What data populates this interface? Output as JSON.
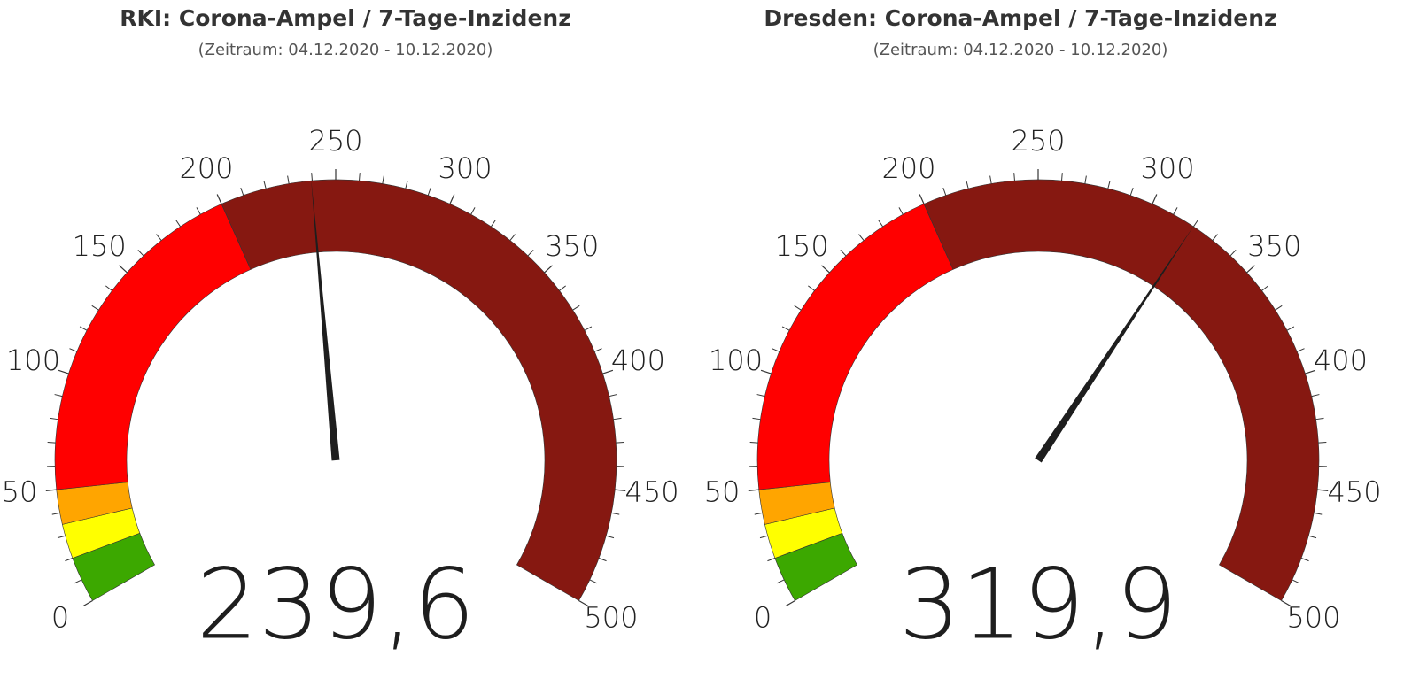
{
  "chart_data": [
    {
      "type": "gauge",
      "title": "RKI: Corona-Ampel / 7-Tage-Inzidenz",
      "subtitle": "(Zeitraum: 04.12.2020 - 10.12.2020)",
      "values": [
        239.6
      ],
      "value_labels": [
        "239,6"
      ],
      "ylim": [
        0,
        500
      ],
      "yticks": [
        0,
        50,
        100,
        150,
        200,
        250,
        300,
        350,
        400,
        450,
        500
      ],
      "minor_ticks": [
        10,
        20,
        30,
        40,
        60,
        70,
        80,
        90,
        110,
        120,
        130,
        140,
        160,
        170,
        180,
        190,
        210,
        220,
        230,
        240,
        260,
        270,
        280,
        290,
        310,
        320,
        330,
        340,
        360,
        370,
        380,
        390,
        410,
        420,
        430,
        440,
        460,
        470,
        480,
        490
      ],
      "bands": [
        {
          "from": 0,
          "to": 20,
          "color": "#3ca800"
        },
        {
          "from": 20,
          "to": 35,
          "color": "#ffff00"
        },
        {
          "from": 35,
          "to": 50,
          "color": "#ffa500"
        },
        {
          "from": 50,
          "to": 200,
          "color": "#ff0000"
        },
        {
          "from": 200,
          "to": 500,
          "color": "#861811"
        }
      ],
      "needle_color": "#1e1e1e"
    },
    {
      "type": "gauge",
      "title": "Dresden: Corona-Ampel / 7-Tage-Inzidenz",
      "subtitle": "(Zeitraum: 04.12.2020 - 10.12.2020)",
      "values": [
        319.9
      ],
      "value_labels": [
        "319,9"
      ],
      "ylim": [
        0,
        500
      ],
      "yticks": [
        0,
        50,
        100,
        150,
        200,
        250,
        300,
        350,
        400,
        450,
        500
      ],
      "minor_ticks": [
        10,
        20,
        30,
        40,
        60,
        70,
        80,
        90,
        110,
        120,
        130,
        140,
        160,
        170,
        180,
        190,
        210,
        220,
        230,
        240,
        260,
        270,
        280,
        290,
        310,
        320,
        330,
        340,
        360,
        370,
        380,
        390,
        410,
        420,
        430,
        440,
        460,
        470,
        480,
        490
      ],
      "bands": [
        {
          "from": 0,
          "to": 20,
          "color": "#3ca800"
        },
        {
          "from": 20,
          "to": 35,
          "color": "#ffff00"
        },
        {
          "from": 35,
          "to": 50,
          "color": "#ffa500"
        },
        {
          "from": 50,
          "to": 200,
          "color": "#ff0000"
        },
        {
          "from": 200,
          "to": 500,
          "color": "#861811"
        }
      ],
      "needle_color": "#1e1e1e"
    }
  ]
}
